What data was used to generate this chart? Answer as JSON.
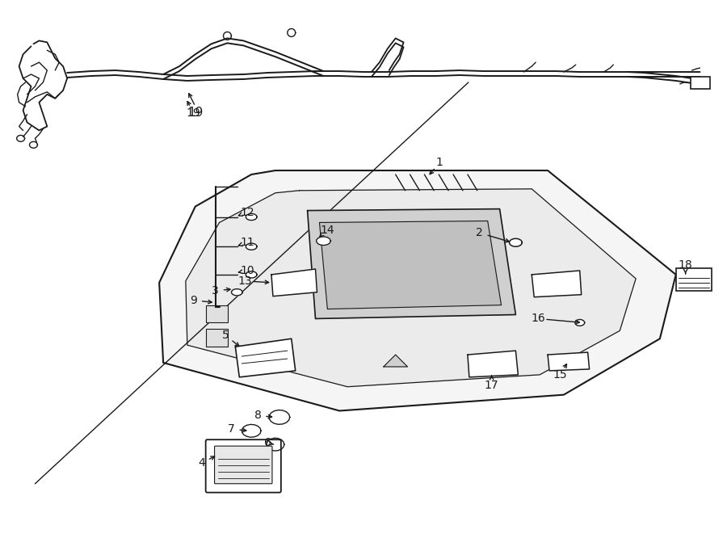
{
  "background_color": "#ffffff",
  "line_color": "#1a1a1a",
  "text_color": "#1a1a1a",
  "fig_width": 9.0,
  "fig_height": 6.61,
  "dpi": 100
}
